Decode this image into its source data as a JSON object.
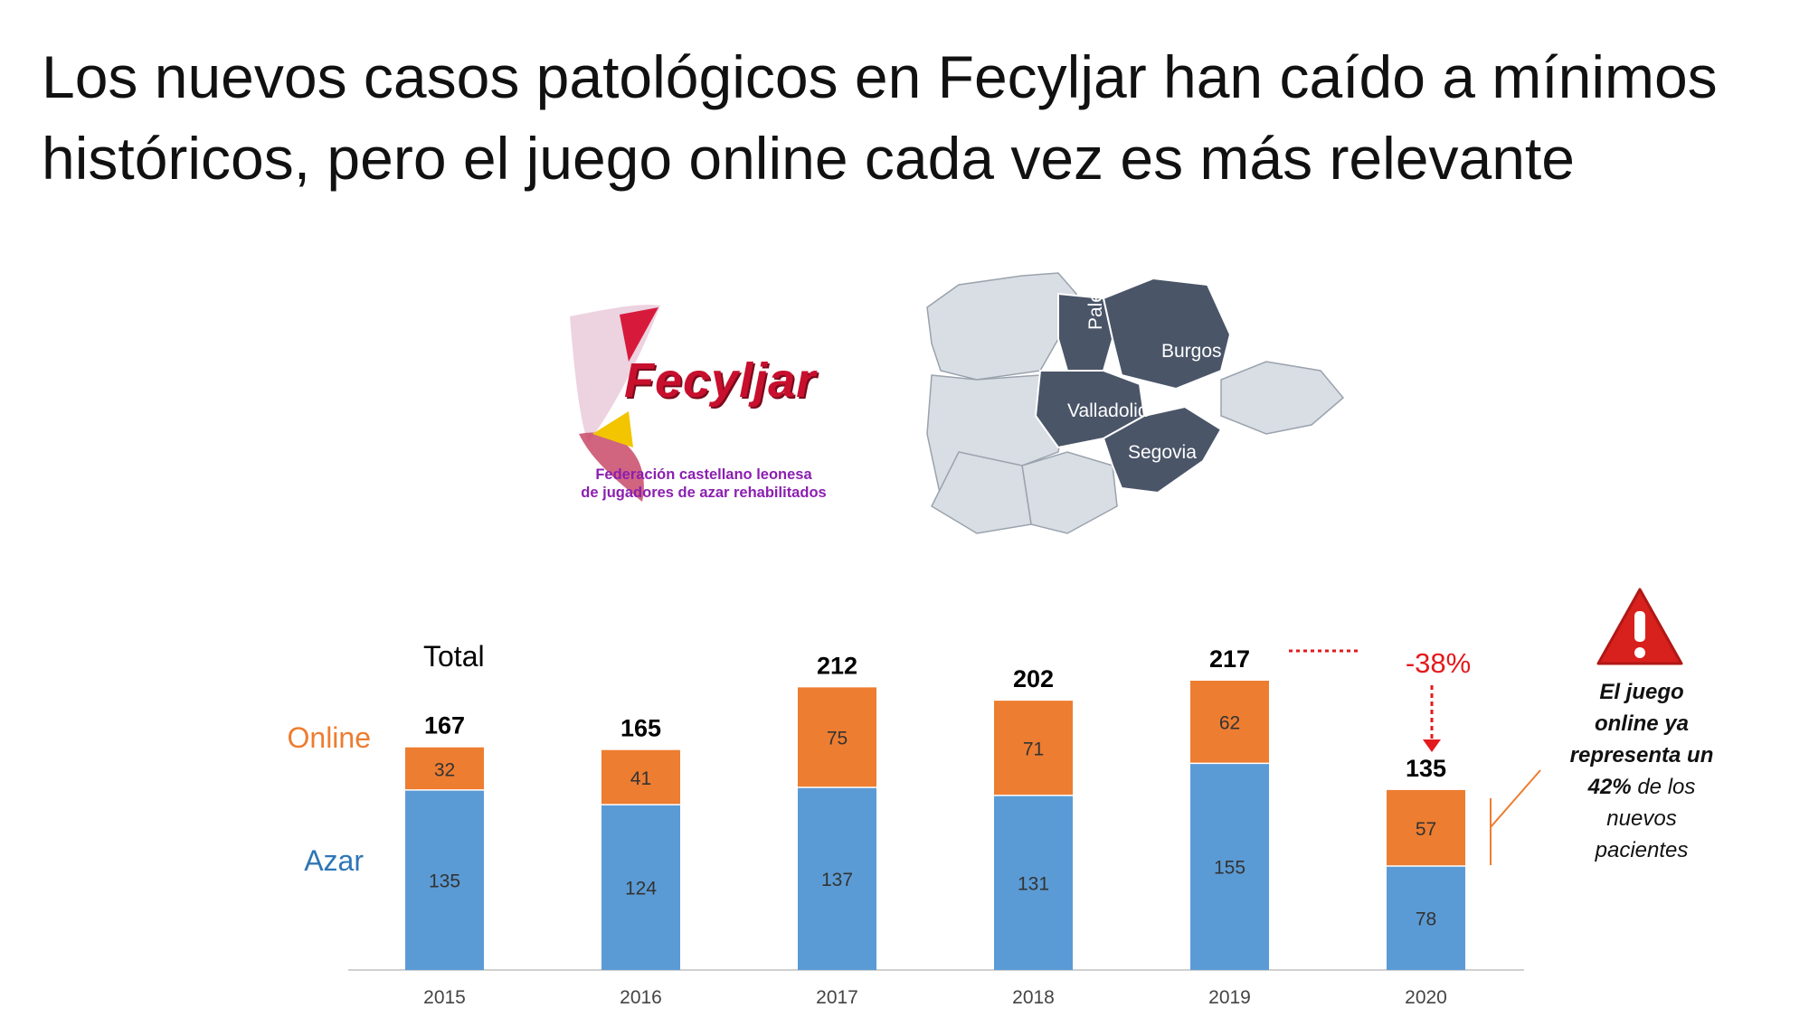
{
  "title": "Los nuevos casos patológicos en Fecyljar han caído a mínimos históricos, pero el juego online cada vez es más relevante",
  "logo": {
    "name": "Fecyljar",
    "subtitle_line1": "Federación castellano leonesa",
    "subtitle_line2": "de jugadores de azar rehabilitados"
  },
  "map": {
    "labels": [
      "Palencia",
      "Burgos",
      "Valladolid",
      "Segovia"
    ],
    "colors": {
      "highlight": "#4a5568",
      "other": "#d9dde4"
    }
  },
  "chart_data": {
    "type": "bar",
    "stacked": true,
    "categories": [
      "2015",
      "2016",
      "2017",
      "2018",
      "2019",
      "2020"
    ],
    "series": [
      {
        "name": "Azar",
        "values": [
          135,
          124,
          137,
          131,
          155,
          78
        ],
        "color": "#5b9bd5"
      },
      {
        "name": "Online",
        "values": [
          32,
          41,
          75,
          71,
          62,
          57
        ],
        "color": "#ed7d31"
      }
    ],
    "totals": [
      167,
      165,
      212,
      202,
      217,
      135
    ],
    "totals_label": "Total",
    "ylim": [
      0,
      217
    ],
    "grid": false,
    "annotation": {
      "text": "-38%",
      "from": "2019",
      "to": "2020",
      "color": "#e31a1c"
    }
  },
  "callout": {
    "line1": "El juego",
    "line2": "online ya",
    "line3": "representa un",
    "pct": "42%",
    "line4_rest": " de los",
    "line5": "nuevos",
    "line6": "pacientes"
  }
}
